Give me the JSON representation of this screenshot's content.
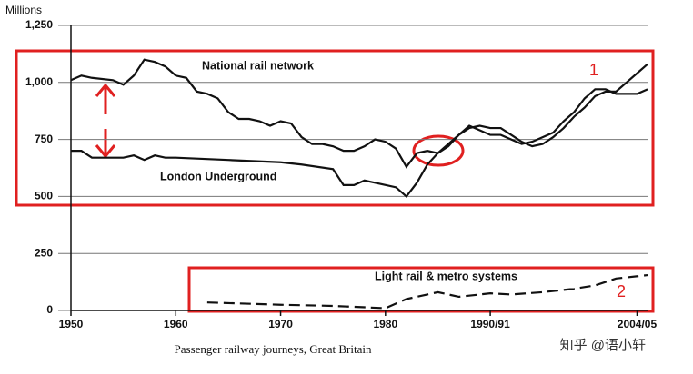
{
  "chart_data": {
    "type": "line",
    "y_label": "Millions",
    "caption": "Passenger railway journeys, Great Britain",
    "xlim": [
      1950,
      2005
    ],
    "xticks": [
      1950,
      1960,
      1970,
      1980,
      {
        "value": 1990,
        "label": "1990/91"
      },
      {
        "value": 2004,
        "label": "2004/05"
      }
    ],
    "ylim": [
      0,
      1250
    ],
    "yticks": [
      0,
      250,
      500,
      750,
      {
        "value": 1000,
        "label": "1,000"
      },
      {
        "value": 1250,
        "label": "1,250"
      }
    ],
    "grid": true,
    "series": [
      {
        "name": "National rail network",
        "color": "#111111",
        "dashed": false,
        "x": [
          1950,
          1951,
          1952,
          1954,
          1955,
          1956,
          1957,
          1958,
          1959,
          1960,
          1961,
          1962,
          1963,
          1964,
          1965,
          1966,
          1967,
          1968,
          1969,
          1970,
          1971,
          1972,
          1973,
          1974,
          1975,
          1976,
          1977,
          1978,
          1979,
          1980,
          1981,
          1982,
          1983,
          1984,
          1985,
          1986,
          1987,
          1988,
          1989,
          1990,
          1991,
          1992,
          1993,
          1994,
          1995,
          1996,
          1997,
          1998,
          1999,
          2000,
          2001,
          2002,
          2003,
          2004,
          2005
        ],
        "values": [
          1010,
          1030,
          1020,
          1010,
          990,
          1030,
          1100,
          1090,
          1070,
          1030,
          1020,
          960,
          950,
          930,
          870,
          840,
          840,
          830,
          810,
          830,
          820,
          760,
          730,
          730,
          720,
          700,
          700,
          720,
          750,
          740,
          710,
          630,
          690,
          700,
          690,
          720,
          770,
          800,
          810,
          800,
          800,
          770,
          740,
          720,
          730,
          760,
          800,
          850,
          890,
          940,
          960,
          960,
          1000,
          1040,
          1080
        ]
      },
      {
        "name": "London Underground",
        "color": "#111111",
        "dashed": false,
        "x": [
          1950,
          1951,
          1952,
          1953,
          1955,
          1956,
          1957,
          1958,
          1959,
          1960,
          1965,
          1970,
          1972,
          1975,
          1976,
          1977,
          1978,
          1979,
          1980,
          1981,
          1982,
          1983,
          1984,
          1985,
          1986,
          1987,
          1988,
          1989,
          1990,
          1991,
          1992,
          1993,
          1994,
          1995,
          1996,
          1997,
          1998,
          1999,
          2000,
          2001,
          2002,
          2003,
          2004,
          2005
        ],
        "values": [
          700,
          700,
          670,
          670,
          670,
          680,
          660,
          680,
          670,
          670,
          660,
          650,
          640,
          620,
          550,
          550,
          570,
          560,
          550,
          540,
          500,
          560,
          640,
          690,
          730,
          770,
          810,
          790,
          770,
          770,
          750,
          730,
          740,
          760,
          780,
          830,
          870,
          930,
          970,
          970,
          950,
          950,
          950,
          970
        ]
      },
      {
        "name": "Light rail & metro systems",
        "color": "#111111",
        "dashed": true,
        "x": [
          1963,
          1970,
          1975,
          1980,
          1982,
          1985,
          1987,
          1990,
          1992,
          1995,
          1998,
          2000,
          2002,
          2005
        ],
        "values": [
          35,
          25,
          20,
          10,
          50,
          80,
          60,
          75,
          70,
          80,
          95,
          110,
          140,
          155
        ]
      }
    ],
    "annotations": [
      "1",
      "2"
    ],
    "watermark": "知乎 @语小轩"
  }
}
